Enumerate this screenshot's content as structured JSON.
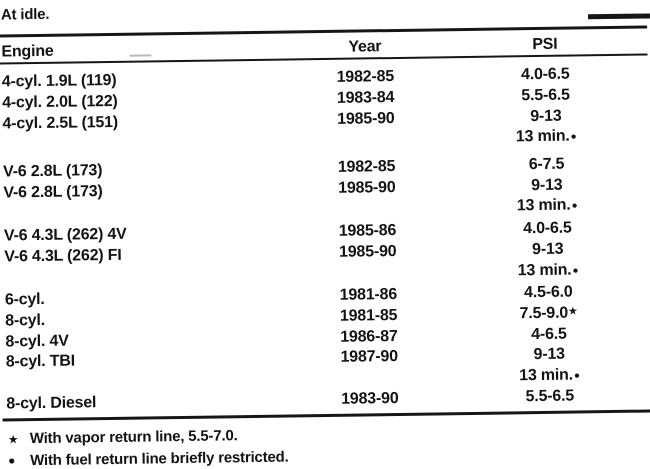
{
  "page": {
    "heading": "At idle."
  },
  "colors": {
    "ink": "#161616",
    "paper": "#ffffff"
  },
  "table": {
    "headers": {
      "engine": "Engine",
      "year": "Year",
      "psi": "PSI"
    },
    "rows": [
      {
        "engine": "4-cyl. 1.9L (119)",
        "year": "1982-85",
        "psi": "4.0-6.5",
        "marker": ""
      },
      {
        "engine": "4-cyl. 2.0L (122)",
        "year": "1983-84",
        "psi": "5.5-6.5",
        "marker": ""
      },
      {
        "engine": "4-cyl. 2.5L (151)",
        "year": "1985-90",
        "psi": "9-13",
        "marker": ""
      },
      {
        "engine": "",
        "year": "",
        "psi": "13 min.",
        "marker": "●"
      },
      {
        "engine": "V-6 2.8L (173)",
        "year": "1982-85",
        "psi": "6-7.5",
        "marker": ""
      },
      {
        "engine": "V-6 2.8L (173)",
        "year": "1985-90",
        "psi": "9-13",
        "marker": ""
      },
      {
        "engine": "",
        "year": "",
        "psi": "13 min.",
        "marker": "●"
      },
      {
        "engine": "V-6 4.3L (262) 4V",
        "year": "1985-86",
        "psi": "4.0-6.5",
        "marker": ""
      },
      {
        "engine": "V-6 4.3L (262) FI",
        "year": "1985-90",
        "psi": "9-13",
        "marker": ""
      },
      {
        "engine": "",
        "year": "",
        "psi": "13 min.",
        "marker": "●"
      },
      {
        "engine": "6-cyl.",
        "year": "1981-86",
        "psi": "4.5-6.0",
        "marker": ""
      },
      {
        "engine": "8-cyl.",
        "year": "1981-85",
        "psi": "7.5-9.0",
        "marker": "★"
      },
      {
        "engine": "8-cyl. 4V",
        "year": "1986-87",
        "psi": "4-6.5",
        "marker": ""
      },
      {
        "engine": "8-cyl. TBI",
        "year": "1987-90",
        "psi": "9-13",
        "marker": ""
      },
      {
        "engine": "",
        "year": "",
        "psi": "13 min.",
        "marker": "●"
      },
      {
        "engine": "8-cyl. Diesel",
        "year": "1983-90",
        "psi": "5.5-6.5",
        "marker": ""
      }
    ]
  },
  "footnotes": [
    {
      "marker": "★",
      "text": "With vapor return line, 5.5-7.0."
    },
    {
      "marker": "●",
      "text": "With fuel return line briefly restricted."
    }
  ]
}
